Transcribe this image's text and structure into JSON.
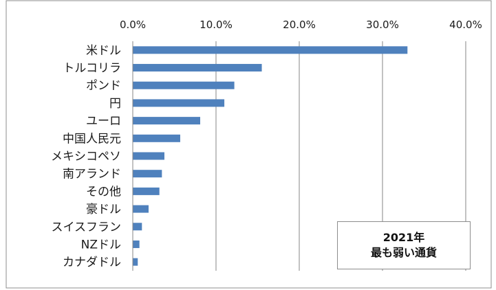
{
  "colors": {
    "bar": "#4f81bd",
    "grid": "#868686",
    "frame": "#8c8c8c",
    "text": "#1a1a1a"
  },
  "caption": {
    "line1": "2021年",
    "line2": "最も弱い通貨"
  },
  "chart_data": {
    "type": "bar",
    "orientation": "horizontal",
    "title": "",
    "xlabel": "",
    "ylabel": "",
    "xlim": [
      0,
      40
    ],
    "ticks": [
      "0.0%",
      "10.0%",
      "20.0%",
      "30.0%",
      "40.0%"
    ],
    "tick_values": [
      0,
      10,
      20,
      30,
      40
    ],
    "x_axis_position": "top",
    "grid": true,
    "categories": [
      "米ドル",
      "トルコリラ",
      "ポンド",
      "円",
      "ユーロ",
      "中国人民元",
      "メキシコペソ",
      "南アランド",
      "その他",
      "豪ドル",
      "スイスフラン",
      "NZドル",
      "カナダドル"
    ],
    "values": [
      33.0,
      15.5,
      12.2,
      11.0,
      8.1,
      5.7,
      3.8,
      3.5,
      3.2,
      1.9,
      1.1,
      0.8,
      0.6
    ]
  }
}
